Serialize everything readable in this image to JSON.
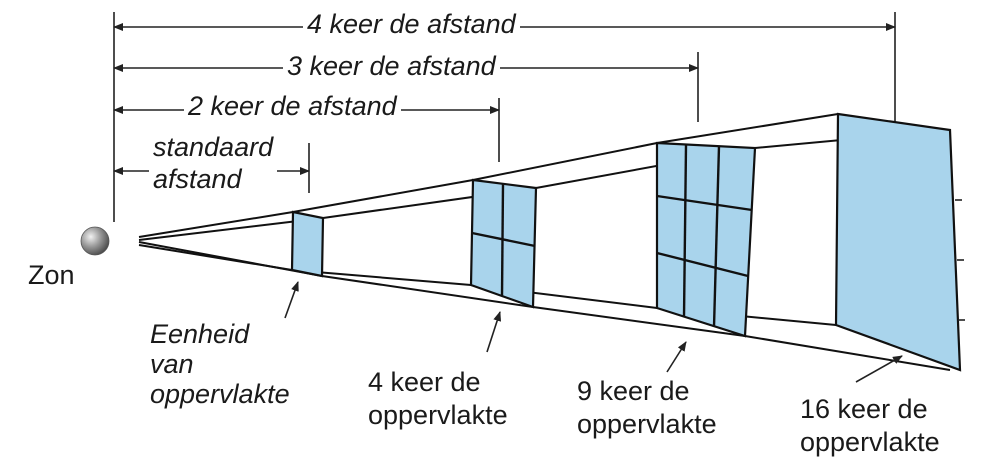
{
  "labels": {
    "sun": "Zon",
    "distance_1": [
      "standaard",
      "afstand"
    ],
    "distance_2": "2 keer de afstand",
    "distance_3": "3 keer de afstand",
    "distance_4": "4 keer de afstand",
    "area_1": [
      "Eenheid",
      "van",
      "oppervlakte"
    ],
    "area_4": [
      "4 keer de",
      "oppervlakte"
    ],
    "area_9": [
      "9 keer de",
      "oppervlakte"
    ],
    "area_16": [
      "16 keer de",
      "oppervlakte"
    ]
  },
  "colors": {
    "panel_fill": "#a9d4ec",
    "sun": "#8a8a8a",
    "line": "#111111"
  }
}
